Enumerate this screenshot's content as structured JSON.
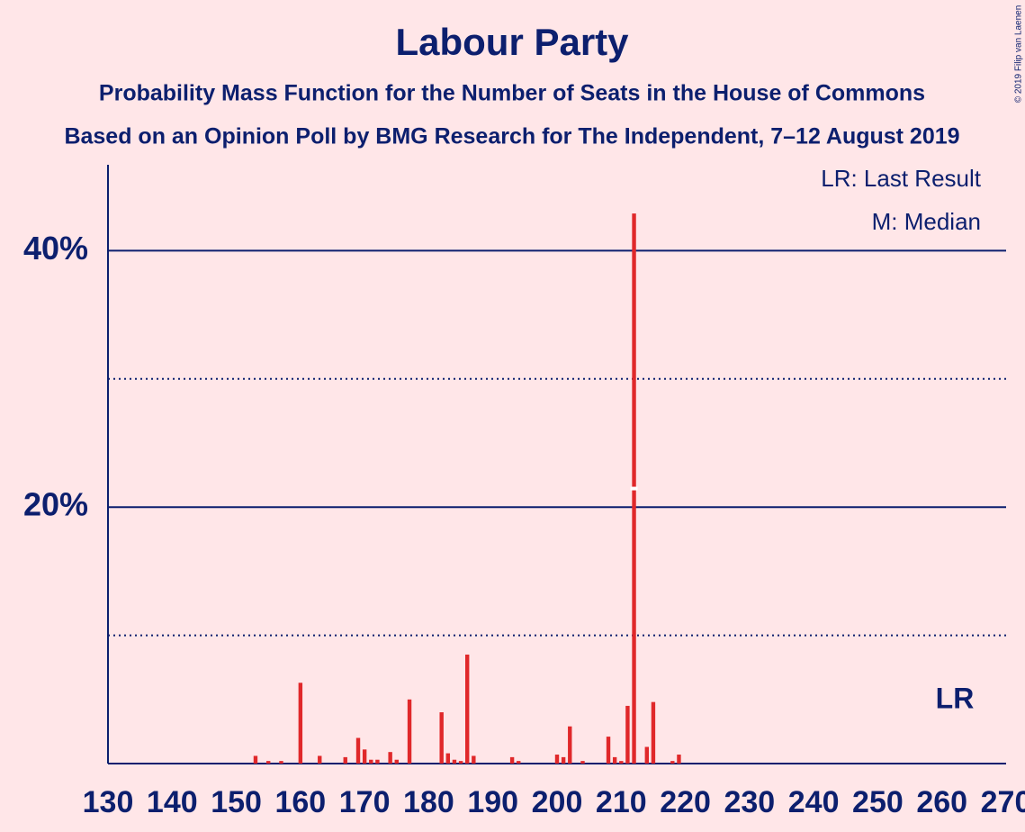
{
  "chart_data": {
    "type": "bar",
    "title": "Labour Party",
    "subtitle": "Probability Mass Function for the Number of Seats in the House of Commons",
    "subtitle2": "Based on an Opinion Poll by BMG Research for The Independent, 7–12 August 2019",
    "legend": [
      "LR: Last Result",
      "M: Median"
    ],
    "copyright": "© 2019 Filip van Laenen",
    "last_result_label": "LR",
    "last_result": 262,
    "median": 212,
    "color": "#e0282a",
    "x": [
      153,
      155,
      157,
      160,
      163,
      167,
      169,
      170,
      171,
      172,
      174,
      175,
      177,
      182,
      183,
      184,
      185,
      186,
      187,
      193,
      194,
      200,
      201,
      202,
      204,
      208,
      209,
      210,
      211,
      212,
      214,
      215,
      218,
      219
    ],
    "values": [
      0.6,
      0.2,
      0.2,
      6.3,
      0.6,
      0.5,
      2.0,
      1.1,
      0.3,
      0.3,
      0.9,
      0.3,
      5.0,
      4.0,
      0.8,
      0.3,
      0.2,
      8.5,
      0.6,
      0.5,
      0.2,
      0.7,
      0.5,
      2.9,
      0.2,
      2.1,
      0.5,
      0.2,
      4.5,
      42.9,
      1.3,
      4.8,
      0.2,
      0.7
    ],
    "xlim": [
      130,
      270
    ],
    "xticks": [
      130,
      140,
      150,
      160,
      170,
      180,
      190,
      200,
      210,
      220,
      230,
      240,
      250,
      260,
      270
    ],
    "ylim": [
      0,
      46.7
    ],
    "yticks": [
      {
        "value": 20,
        "label": "20%"
      },
      {
        "value": 40,
        "label": "40%"
      }
    ],
    "yminor": [
      10,
      30
    ],
    "grid": true
  }
}
